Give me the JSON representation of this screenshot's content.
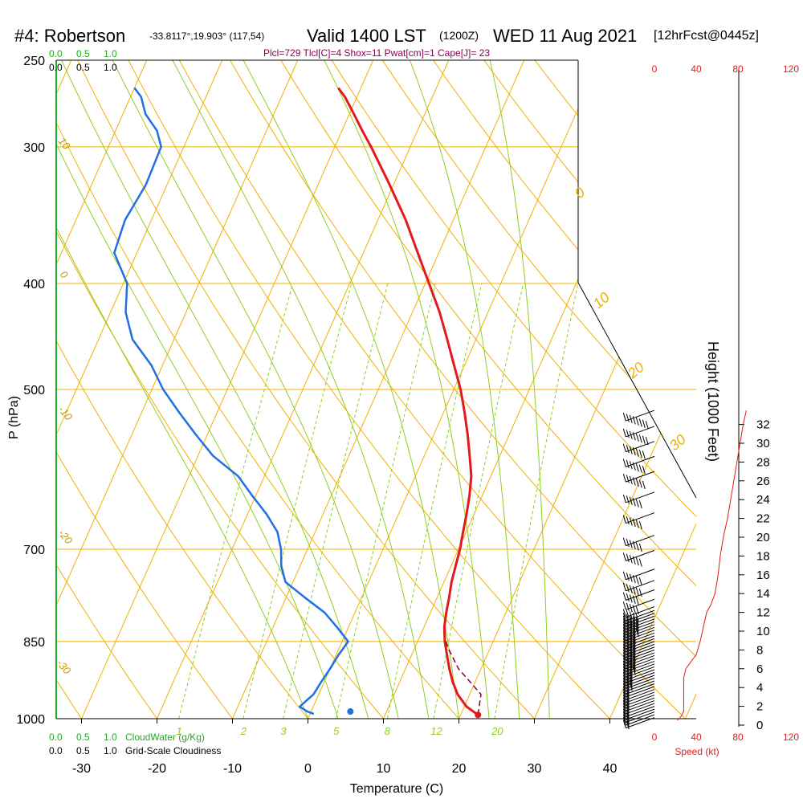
{
  "header": {
    "station": "#4: Robertson",
    "coords": "-33.8117°,19.903° (117,54)",
    "valid": "Valid 1400 LST",
    "utc": "(1200Z)",
    "date": "WED 11 Aug 2021",
    "forecast": "[12hrFcst@0445z]",
    "indices": "Plcl=729 Tlcl[C]=4 Shox=11 Pwat[cm]=1 Cape[J]= 23"
  },
  "colors": {
    "isotherm": "#f0b000",
    "dry_adiabat": "#f0b000",
    "moist_adiabat": "#8fcf20",
    "mixing_ratio": "#8fcf20",
    "temperature": "#e31a1c",
    "dewpoint": "#1f6fe5",
    "parcel": "#800040",
    "cloud": "#22aa22",
    "speed": "#e31a1c"
  },
  "chart_data": {
    "type": "skew-t",
    "title": "#4: Robertson Valid 1400 LST WED 11 Aug 2021",
    "xlabel": "Temperature (C)",
    "ylabel": "P (hPa)",
    "y2label": "Height (1000 Feet)",
    "x_ticks": [
      "-30",
      "-20",
      "-10",
      "0",
      "10",
      "20",
      "30",
      "40"
    ],
    "x_tick_values": [
      -30,
      -20,
      -10,
      0,
      10,
      20,
      30,
      40
    ],
    "p_ticks": [
      "250",
      "300",
      "400",
      "500",
      "700",
      "850",
      "1000"
    ],
    "p_tick_values": [
      250,
      300,
      400,
      500,
      700,
      850,
      1000
    ],
    "height_ticks": [
      "0",
      "2",
      "4",
      "6",
      "8",
      "10",
      "12",
      "14",
      "16",
      "18",
      "20",
      "22",
      "24",
      "26",
      "28",
      "30",
      "32"
    ],
    "height_tick_values": [
      0,
      2,
      4,
      6,
      8,
      10,
      12,
      14,
      16,
      18,
      20,
      22,
      24,
      26,
      28,
      30,
      32
    ],
    "temp_x_range": [
      -33.5,
      36
    ],
    "pressure_range": [
      250,
      1000
    ],
    "dry_adiabat_labels": [
      "0",
      "10",
      "20",
      "30"
    ],
    "dry_adiabat_values": [
      0,
      10,
      20,
      30
    ],
    "left_isotherm_labels": [
      "10",
      "0",
      "-10",
      "-20",
      "-30"
    ],
    "mixing_ratio_labels": [
      "1",
      "2",
      "3",
      "5",
      "8",
      "12",
      "20"
    ],
    "mixing_ratio_values": [
      1,
      2,
      3,
      5,
      8,
      12,
      20
    ],
    "temperature": {
      "name": "Temperature",
      "p": [
        992,
        975,
        950,
        925,
        900,
        875,
        850,
        825,
        800,
        775,
        750,
        725,
        700,
        675,
        650,
        625,
        600,
        575,
        550,
        525,
        500,
        475,
        450,
        425,
        400,
        375,
        350,
        325,
        300,
        290,
        280,
        270,
        265
      ],
      "t": [
        22.3,
        20.3,
        18.4,
        17.0,
        15.8,
        14.7,
        13.6,
        12.7,
        12.1,
        11.6,
        11.0,
        10.6,
        10.2,
        9.6,
        9.0,
        8.3,
        7.4,
        6.0,
        4.5,
        2.8,
        0.9,
        -1.4,
        -3.8,
        -6.4,
        -9.5,
        -12.8,
        -16.3,
        -20.5,
        -25.2,
        -27.3,
        -29.4,
        -31.6,
        -33.0
      ]
    },
    "dewpoint": {
      "name": "Dewpoint",
      "p": [
        990,
        985,
        975,
        950,
        925,
        900,
        875,
        850,
        825,
        800,
        775,
        750,
        725,
        700,
        675,
        650,
        625,
        600,
        575,
        550,
        525,
        500,
        475,
        450,
        425,
        400,
        375,
        350,
        325,
        300,
        290,
        280,
        270,
        265
      ],
      "td": [
        0.5,
        -0.5,
        -1.8,
        -0.7,
        -0.4,
        0.0,
        0.3,
        0.8,
        -1.5,
        -4.0,
        -7.5,
        -11.0,
        -12.5,
        -13.5,
        -15.0,
        -17.5,
        -20.5,
        -23.5,
        -28.0,
        -31.5,
        -35.0,
        -38.5,
        -41.5,
        -45.5,
        -48.0,
        -49.5,
        -53.0,
        -53.5,
        -52.8,
        -53.0,
        -54.5,
        -57.0,
        -58.6,
        -60.0
      ]
    },
    "parcel": {
      "name": "Parcel",
      "p": [
        992,
        950,
        900,
        860,
        845
      ],
      "t": [
        22.3,
        21.5,
        17.0,
        14.3,
        13.5
      ]
    },
    "surface_dewpoint": {
      "p": 985,
      "td": 5.2
    },
    "wind_speed_ticks": [
      "0",
      "40",
      "80",
      "120"
    ],
    "wind_speed_values": [
      0,
      40,
      80,
      120
    ],
    "wind_speed_label": "Speed (kt)",
    "wind_speed_profile": {
      "height_kft": [
        0.5,
        1.0,
        1.5,
        3.0,
        5.0,
        6.0,
        7.5,
        9.0,
        10.5,
        12.0,
        12.8,
        14.0,
        16.0,
        18.0,
        20.0,
        22.0,
        24.0,
        26.0,
        28.0,
        30.0,
        32.0,
        33.5
      ],
      "speed_kt": [
        22,
        26,
        28,
        28,
        28,
        30,
        40,
        44,
        47,
        50,
        54,
        58,
        61,
        63,
        66,
        70,
        73,
        76,
        79,
        82,
        85,
        88
      ]
    },
    "wind_barbs": {
      "height_kft": [
        0.8,
        1.1,
        1.4,
        1.7,
        2.0,
        2.3,
        2.6,
        2.9,
        3.2,
        3.5,
        3.8,
        4.1,
        4.4,
        4.7,
        5.0,
        5.3,
        5.6,
        5.9,
        6.2,
        6.5,
        6.8,
        7.1,
        7.4,
        7.7,
        8.0,
        8.3,
        8.6,
        8.9,
        9.2,
        9.5,
        9.8,
        10.1,
        10.4,
        10.7,
        11.0,
        11.3,
        11.6,
        11.9,
        12.2,
        12.6,
        13.4,
        14.4,
        15.4,
        16.6,
        18.6,
        20.2,
        22.6,
        24.8,
        27.0,
        28.6,
        30.2,
        31.8,
        33.5
      ],
      "speed_kt": [
        22,
        25,
        27,
        28,
        28,
        28,
        28,
        28,
        28,
        28,
        28,
        28,
        29,
        29,
        30,
        31,
        33,
        35,
        37,
        38,
        40,
        41,
        42,
        43,
        44,
        45,
        45,
        46,
        46,
        47,
        47,
        48,
        48,
        49,
        50,
        50,
        51,
        52,
        53,
        54,
        56,
        58,
        60,
        62,
        60,
        62,
        64,
        66,
        70,
        72,
        75,
        80,
        85
      ]
    },
    "cloud_scale_labels": [
      "0.0",
      "0.5",
      "1.0"
    ],
    "cloud_scale_values": [
      0.0,
      0.5,
      1.0
    ],
    "cloud_water_label": "CloudWater (g/Kg)",
    "cloudiness_label": "Grid-Scale Cloudiness",
    "cloud_water_profile": {
      "p": [
        250,
        1000
      ],
      "value": [
        0.0,
        0.0
      ]
    }
  }
}
